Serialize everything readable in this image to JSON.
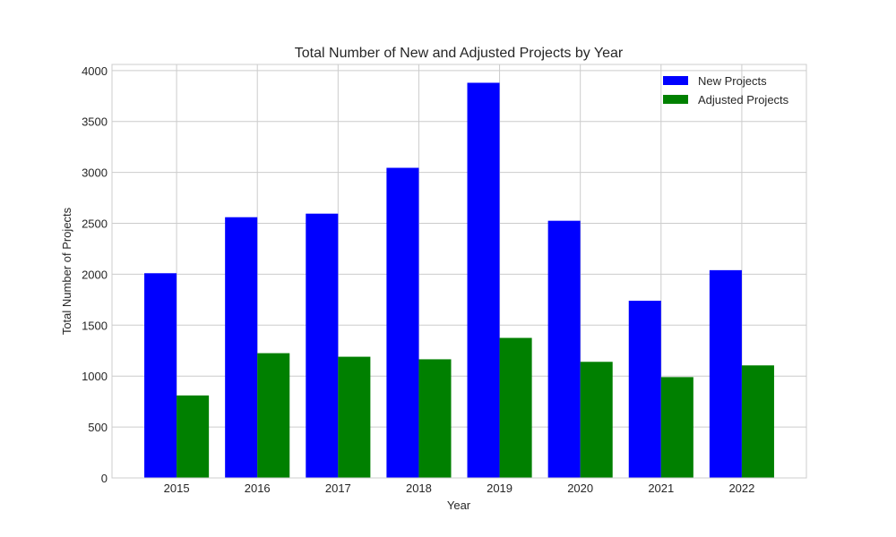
{
  "chart_data": {
    "type": "bar",
    "title": "Total Number of New and Adjusted Projects by Year",
    "xlabel": "Year",
    "ylabel": "Total Number of Projects",
    "categories": [
      "2015",
      "2016",
      "2017",
      "2018",
      "2019",
      "2020",
      "2021",
      "2022"
    ],
    "series": [
      {
        "name": "New Projects",
        "color": "#0000ff",
        "values": [
          2010,
          2560,
          2595,
          3045,
          3880,
          2525,
          1740,
          2040
        ]
      },
      {
        "name": "Adjusted Projects",
        "color": "#008000",
        "values": [
          810,
          1225,
          1190,
          1165,
          1375,
          1140,
          990,
          1105
        ]
      }
    ],
    "ylim": [
      0,
      4060
    ],
    "yticks": [
      0,
      500,
      1000,
      1500,
      2000,
      2500,
      3000,
      3500,
      4000
    ],
    "grid": true,
    "legend_position": "top-right"
  }
}
